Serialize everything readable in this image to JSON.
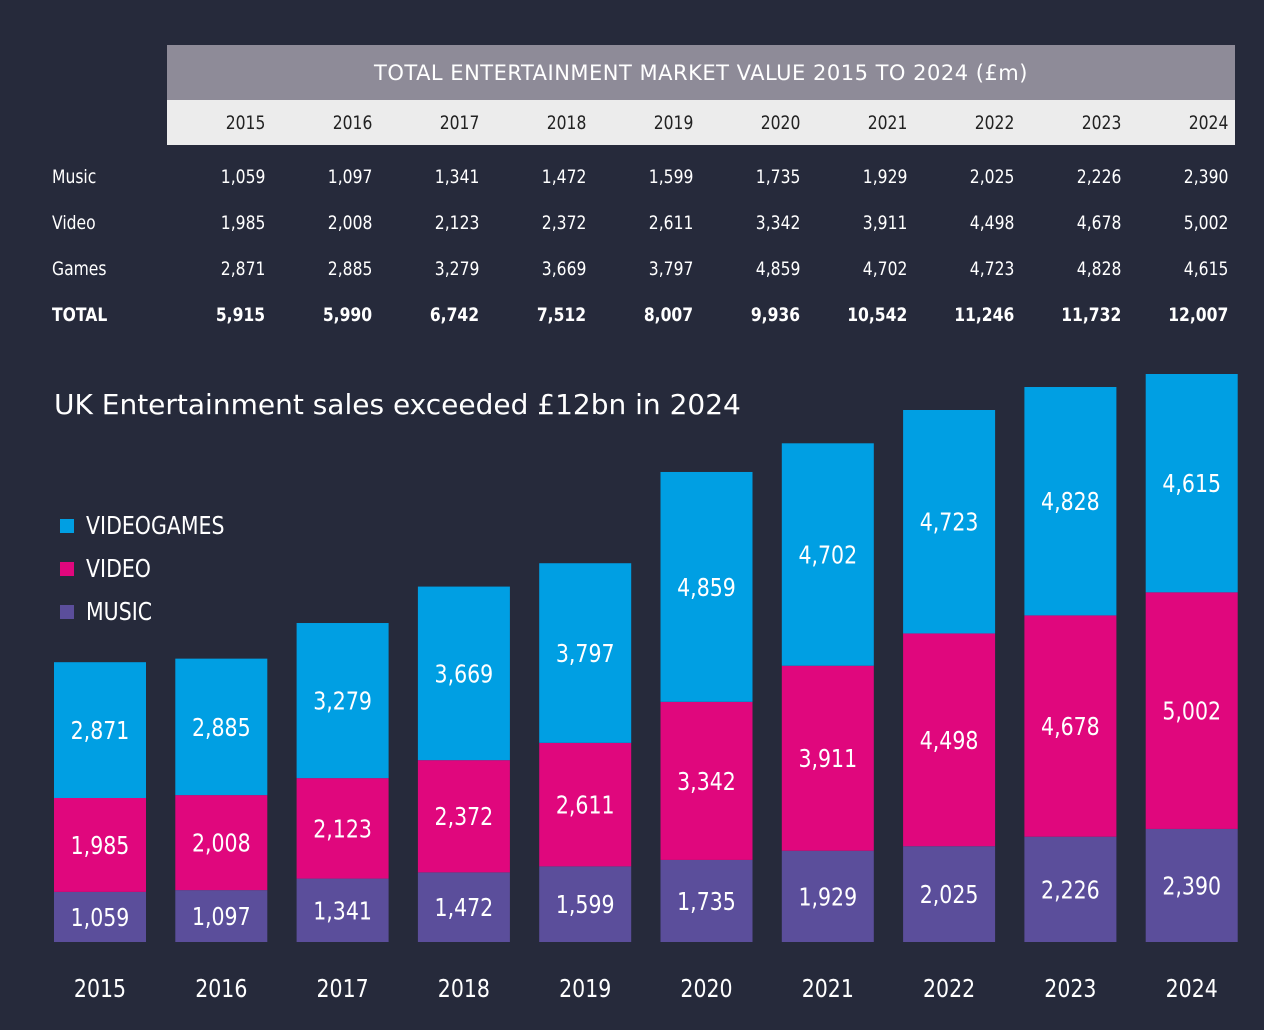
{
  "table": {
    "title": "TOTAL ENTERTAINMENT MARKET VALUE 2015 TO 2024 (£m)",
    "years": [
      "2015",
      "2016",
      "2017",
      "2018",
      "2019",
      "2020",
      "2021",
      "2022",
      "2023",
      "2024"
    ],
    "rows": [
      {
        "label": "Music",
        "values": [
          "1,059",
          "1,097",
          "1,341",
          "1,472",
          "1,599",
          "1,735",
          "1,929",
          "2,025",
          "2,226",
          "2,390"
        ]
      },
      {
        "label": "Video",
        "values": [
          "1,985",
          "2,008",
          "2,123",
          "2,372",
          "2,611",
          "3,342",
          "3,911",
          "4,498",
          "4,678",
          "5,002"
        ]
      },
      {
        "label": "Games",
        "values": [
          "2,871",
          "2,885",
          "3,279",
          "3,669",
          "3,797",
          "4,859",
          "4,702",
          "4,723",
          "4,828",
          "4,615"
        ]
      },
      {
        "label": "TOTAL",
        "values": [
          "5,915",
          "5,990",
          "6,742",
          "7,512",
          "8,007",
          "9,936",
          "10,542",
          "11,246",
          "11,732",
          "12,007"
        ]
      }
    ]
  },
  "chart_data": {
    "type": "bar",
    "stacked": true,
    "title": "UK Entertainment sales exceeded £12bn in 2024",
    "categories": [
      "2015",
      "2016",
      "2017",
      "2018",
      "2019",
      "2020",
      "2021",
      "2022",
      "2023",
      "2024"
    ],
    "series": [
      {
        "name": "MUSIC",
        "color": "#5b4e9b",
        "values": [
          1059,
          1097,
          1341,
          1472,
          1599,
          1735,
          1929,
          2025,
          2226,
          2390
        ]
      },
      {
        "name": "VIDEO",
        "color": "#e0077d",
        "values": [
          1985,
          2008,
          2123,
          2372,
          2611,
          3342,
          3911,
          4498,
          4678,
          5002
        ]
      },
      {
        "name": "VIDEOGAMES",
        "color": "#009fe3",
        "values": [
          2871,
          2885,
          3279,
          3669,
          3797,
          4859,
          4702,
          4723,
          4828,
          4615
        ]
      }
    ],
    "legend": {
      "position": "left",
      "items": [
        {
          "name": "VIDEOGAMES",
          "color": "#009fe3"
        },
        {
          "name": "VIDEO",
          "color": "#e0077d"
        },
        {
          "name": "MUSIC",
          "color": "#5b4e9b"
        }
      ]
    },
    "ylim": [
      0,
      12007
    ],
    "grid": false
  }
}
